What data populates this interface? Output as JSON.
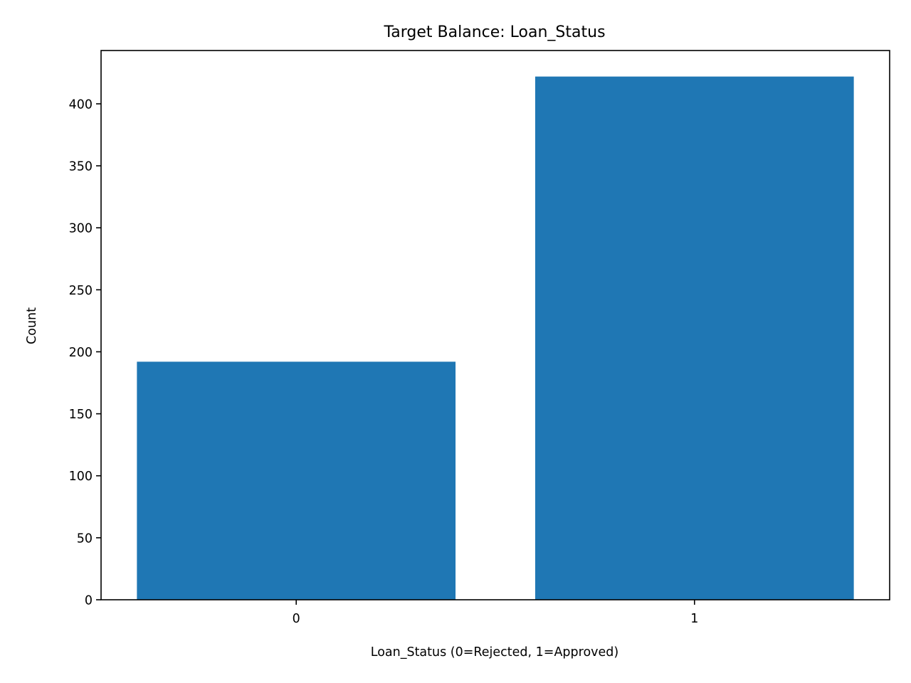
{
  "chart_data": {
    "type": "bar",
    "title": "Target Balance: Loan_Status",
    "xlabel": "Loan_Status (0=Rejected, 1=Approved)",
    "ylabel": "Count",
    "categories": [
      "0",
      "1"
    ],
    "values": [
      192,
      422
    ],
    "ylim": [
      0,
      443
    ],
    "yticks": [
      0,
      50,
      100,
      150,
      200,
      250,
      300,
      350,
      400
    ],
    "grid": false,
    "legend": "none",
    "bar_color": "#1f77b4"
  }
}
